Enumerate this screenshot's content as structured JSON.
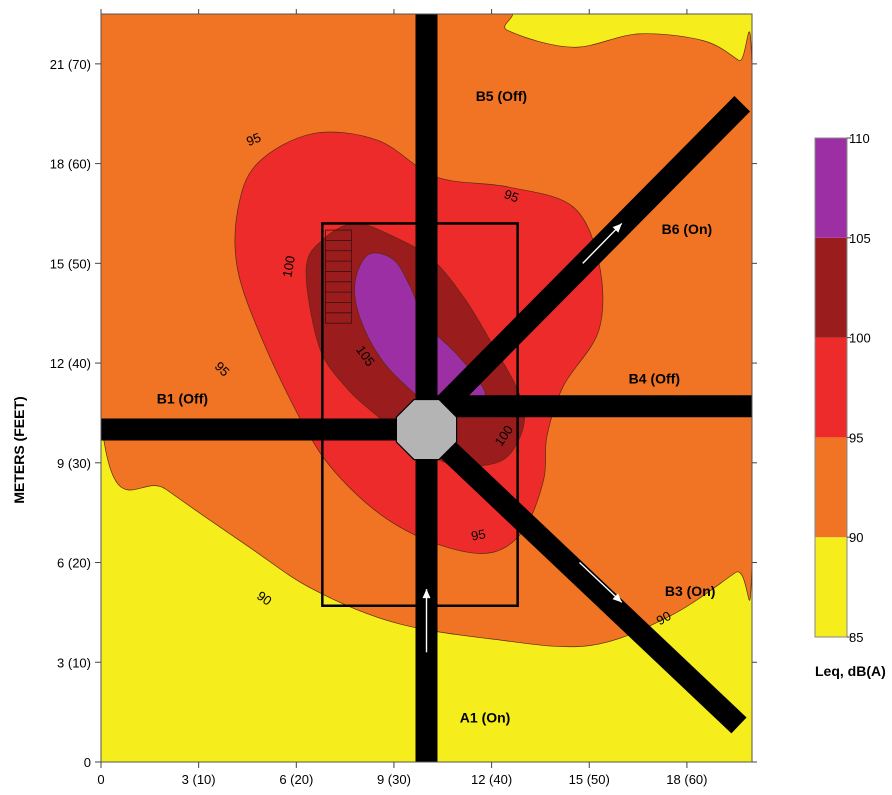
{
  "chart_data": {
    "type": "heatmap",
    "title": "",
    "xlabel": "",
    "ylabel": "METERS (FEET)",
    "xlim": [
      0,
      20
    ],
    "ylim": [
      0,
      22.5
    ],
    "x_ticks": [
      {
        "value": 0,
        "label": "0"
      },
      {
        "value": 3,
        "label": "3 (10)"
      },
      {
        "value": 6,
        "label": "6 (20)"
      },
      {
        "value": 9,
        "label": "9 (30)"
      },
      {
        "value": 12,
        "label": "12 (40)"
      },
      {
        "value": 15,
        "label": "15 (50)"
      },
      {
        "value": 18,
        "label": "18 (60)"
      }
    ],
    "y_ticks": [
      {
        "value": 0,
        "label": "0"
      },
      {
        "value": 3,
        "label": "3 (10)"
      },
      {
        "value": 6,
        "label": "6 (20)"
      },
      {
        "value": 9,
        "label": "9 (30)"
      },
      {
        "value": 12,
        "label": "12 (40)"
      },
      {
        "value": 15,
        "label": "15 (50)"
      },
      {
        "value": 18,
        "label": "18 (60)"
      },
      {
        "value": 21,
        "label": "21 (70)"
      }
    ],
    "colorbar": {
      "title": "Leq, dB(A)",
      "levels": [
        85,
        90,
        95,
        100,
        105,
        110
      ],
      "bands": [
        {
          "from": 85,
          "to": 90,
          "color": "#f5ee1c"
        },
        {
          "from": 90,
          "to": 95,
          "color": "#f07423"
        },
        {
          "from": 95,
          "to": 100,
          "color": "#ee2b2b"
        },
        {
          "from": 100,
          "to": 105,
          "color": "#9b1c1c"
        },
        {
          "from": 105,
          "to": 110,
          "color": "#9c2fa3"
        }
      ]
    },
    "contours": [
      {
        "level": 90,
        "color": "#f07423",
        "points": [
          [
            0.1,
            9.6
          ],
          [
            2.0,
            8.2
          ],
          [
            4.5,
            6.5
          ],
          [
            6.5,
            5.2
          ],
          [
            9.0,
            4.2
          ],
          [
            12.0,
            3.7
          ],
          [
            15.0,
            3.5
          ],
          [
            17.5,
            4.4
          ],
          [
            19.5,
            5.7
          ],
          [
            20.0,
            6.0
          ],
          [
            20.0,
            20.8
          ],
          [
            19.6,
            21.1
          ],
          [
            18.5,
            21.7
          ],
          [
            16.5,
            21.9
          ],
          [
            14.5,
            21.5
          ],
          [
            12.5,
            22.0
          ],
          [
            11.5,
            22.8
          ],
          [
            -0.5,
            22.8
          ]
        ]
      },
      {
        "level": 95,
        "color": "#ee2b2b",
        "points": [
          [
            4.2,
            16.6
          ],
          [
            4.8,
            18.0
          ],
          [
            6.5,
            18.9
          ],
          [
            8.5,
            18.7
          ],
          [
            10.3,
            17.6
          ],
          [
            12.5,
            17.3
          ],
          [
            14.5,
            16.7
          ],
          [
            15.3,
            15.0
          ],
          [
            15.3,
            13.0
          ],
          [
            14.2,
            11.3
          ],
          [
            13.7,
            9.8
          ],
          [
            13.6,
            8.5
          ],
          [
            13.0,
            7.0
          ],
          [
            12.0,
            6.3
          ],
          [
            10.5,
            6.5
          ],
          [
            8.8,
            7.3
          ],
          [
            7.3,
            8.6
          ],
          [
            6.3,
            10.0
          ],
          [
            5.0,
            12.6
          ],
          [
            4.2,
            14.8
          ]
        ]
      },
      {
        "level": 100,
        "color": "#9b1c1c",
        "points": [
          [
            6.3,
            14.8
          ],
          [
            6.8,
            15.7
          ],
          [
            7.8,
            16.2
          ],
          [
            9.0,
            15.8
          ],
          [
            10.2,
            15.1
          ],
          [
            11.2,
            13.9
          ],
          [
            12.0,
            12.6
          ],
          [
            12.8,
            11.2
          ],
          [
            13.0,
            10.2
          ],
          [
            12.5,
            9.2
          ],
          [
            11.6,
            8.9
          ],
          [
            10.6,
            9.0
          ],
          [
            9.6,
            9.6
          ],
          [
            8.5,
            10.4
          ],
          [
            7.5,
            11.3
          ],
          [
            6.7,
            12.5
          ]
        ]
      },
      {
        "level": 105,
        "color": "#9c2fa3",
        "points": [
          [
            7.9,
            14.8
          ],
          [
            8.3,
            15.3
          ],
          [
            9.0,
            15.1
          ],
          [
            9.5,
            14.3
          ],
          [
            10.0,
            13.2
          ],
          [
            10.9,
            12.3
          ],
          [
            11.5,
            11.6
          ],
          [
            11.8,
            11.0
          ],
          [
            11.2,
            10.6
          ],
          [
            10.3,
            10.6
          ],
          [
            9.5,
            11.2
          ],
          [
            8.7,
            12.0
          ],
          [
            8.1,
            13.0
          ],
          [
            7.8,
            14.0
          ]
        ]
      }
    ],
    "contour_labels": [
      {
        "text": "95",
        "x": 4.7,
        "y": 18.7,
        "rotation": -22
      },
      {
        "text": "95",
        "x": 12.6,
        "y": 17.0,
        "rotation": 20
      },
      {
        "text": "100",
        "x": 5.8,
        "y": 14.9,
        "rotation": -80
      },
      {
        "text": "105",
        "x": 8.1,
        "y": 12.2,
        "rotation": 55
      },
      {
        "text": "95",
        "x": 3.7,
        "y": 11.8,
        "rotation": 45
      },
      {
        "text": "100",
        "x": 12.4,
        "y": 9.8,
        "rotation": -55
      },
      {
        "text": "95",
        "x": 11.6,
        "y": 6.8,
        "rotation": -10
      },
      {
        "text": "90",
        "x": 5.0,
        "y": 4.9,
        "rotation": 35
      },
      {
        "text": "90",
        "x": 17.3,
        "y": 4.3,
        "rotation": -30
      }
    ],
    "ducts": [
      {
        "name": "A1",
        "status": "On",
        "from": [
          10.0,
          10.0
        ],
        "to": [
          10.0,
          -0.5
        ],
        "airflow_arrow": {
          "from": [
            10.0,
            3.3
          ],
          "to": [
            10.0,
            5.2
          ]
        }
      },
      {
        "name": "B1",
        "status": "Off",
        "from": [
          10.0,
          10.0
        ],
        "to": [
          0.0,
          10.0
        ]
      },
      {
        "name": "B3",
        "status": "On",
        "from": [
          10.0,
          10.0
        ],
        "to": [
          19.6,
          1.1
        ],
        "airflow_arrow": {
          "from": [
            14.7,
            6.0
          ],
          "to": [
            16.0,
            4.8
          ]
        }
      },
      {
        "name": "B4",
        "status": "Off",
        "from": [
          10.0,
          10.7
        ],
        "to": [
          20.0,
          10.7
        ]
      },
      {
        "name": "B5",
        "status": "Off",
        "from": [
          10.0,
          10.0
        ],
        "to": [
          10.0,
          22.5
        ]
      },
      {
        "name": "B6",
        "status": "On",
        "from": [
          10.4,
          10.6
        ],
        "to": [
          19.7,
          19.8
        ],
        "airflow_arrow": {
          "from": [
            14.8,
            15.0
          ],
          "to": [
            16.0,
            16.2
          ]
        }
      }
    ],
    "duct_labels": [
      {
        "text": "A1 (On)",
        "x": 11.8,
        "y": 1.3
      },
      {
        "text": "B1 (Off)",
        "x": 2.5,
        "y": 10.9
      },
      {
        "text": "B3 (On)",
        "x": 18.1,
        "y": 5.1
      },
      {
        "text": "B4 (Off)",
        "x": 17.0,
        "y": 11.5
      },
      {
        "text": "B5 (Off)",
        "x": 12.3,
        "y": 20.0
      },
      {
        "text": "B6 (On)",
        "x": 18.0,
        "y": 16.0
      }
    ],
    "junction": {
      "center": [
        10.0,
        10.0
      ],
      "radius": 1.0
    },
    "enclosure": {
      "x0": 6.8,
      "y0": 4.7,
      "x1": 12.8,
      "y1": 16.2
    },
    "grille": {
      "x0": 6.9,
      "y0": 13.2,
      "x1": 7.7,
      "y1": 16.0,
      "rows": 9
    }
  }
}
